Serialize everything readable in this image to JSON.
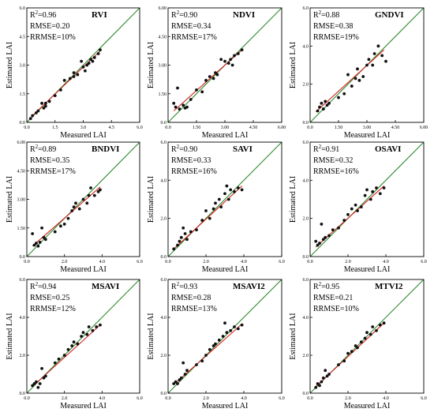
{
  "x_axis_label": "Measured LAI",
  "y_axis_label": "Estimated LAI",
  "colors": {
    "one_to_one_line": "#2e8b2e",
    "fit_line": "#d62020",
    "points": "#111111",
    "frame": "#000000"
  },
  "chart_data": [
    {
      "type": "scatter",
      "title": "RVI",
      "stats": {
        "r2_prefix": "R",
        "r2_sup": "2",
        "r2_value": "=0.96",
        "rmse": "RMSE=0.20",
        "rrmse": "RRMSE=10%"
      },
      "xlim": [
        0,
        6
      ],
      "ylim": [
        0,
        6
      ],
      "x_ticks": [
        0,
        1.5,
        3,
        4.5,
        6
      ],
      "x_tick_labels": [
        "0.0",
        "1.5",
        "3.0",
        "4.5",
        "6.0"
      ],
      "y_ticks": [
        0,
        1.5,
        3,
        4.5,
        6
      ],
      "y_tick_labels": [
        "0.0",
        "1.5",
        "3.0",
        "4.5",
        "6.0"
      ],
      "fit_line": [
        [
          0.3,
          0.35
        ],
        [
          3.9,
          3.75
        ]
      ],
      "points": [
        [
          0.2,
          0.2
        ],
        [
          0.3,
          0.35
        ],
        [
          0.5,
          0.5
        ],
        [
          0.6,
          0.6
        ],
        [
          0.8,
          1.0
        ],
        [
          0.9,
          0.75
        ],
        [
          1.0,
          0.85
        ],
        [
          1.0,
          1.0
        ],
        [
          1.2,
          1.1
        ],
        [
          1.5,
          1.4
        ],
        [
          1.8,
          1.7
        ],
        [
          2.0,
          2.2
        ],
        [
          2.3,
          2.3
        ],
        [
          2.5,
          2.4
        ],
        [
          2.5,
          2.6
        ],
        [
          2.7,
          2.5
        ],
        [
          2.9,
          3.2
        ],
        [
          3.0,
          2.9
        ],
        [
          3.1,
          2.7
        ],
        [
          3.2,
          3.0
        ],
        [
          3.3,
          3.1
        ],
        [
          3.4,
          3.3
        ],
        [
          3.5,
          3.2
        ],
        [
          3.6,
          3.4
        ],
        [
          3.8,
          3.6
        ],
        [
          3.9,
          3.8
        ]
      ]
    },
    {
      "type": "scatter",
      "title": "NDVI",
      "stats": {
        "r2_prefix": "R",
        "r2_sup": "2",
        "r2_value": "=0.90",
        "rmse": "RMSE=0.34",
        "rrmse": "RRMSE=17%"
      },
      "xlim": [
        0,
        6
      ],
      "ylim": [
        0,
        6
      ],
      "x_ticks": [
        0,
        1.5,
        3,
        4.5,
        6
      ],
      "x_tick_labels": [
        "0.0",
        "1.50",
        "3.00",
        "4.50",
        "6.00"
      ],
      "y_ticks": [
        0,
        1.5,
        3,
        4.5,
        6
      ],
      "y_tick_labels": [
        "0.0",
        "1.50",
        "3.00",
        "4.50",
        "6.00"
      ],
      "fit_line": [
        [
          0.3,
          0.6
        ],
        [
          3.9,
          3.8
        ]
      ],
      "points": [
        [
          0.3,
          1.0
        ],
        [
          0.4,
          0.8
        ],
        [
          0.5,
          1.8
        ],
        [
          0.6,
          0.7
        ],
        [
          0.8,
          0.9
        ],
        [
          0.9,
          0.75
        ],
        [
          1.0,
          0.8
        ],
        [
          1.2,
          1.2
        ],
        [
          1.5,
          1.7
        ],
        [
          1.8,
          1.6
        ],
        [
          2.0,
          2.2
        ],
        [
          2.2,
          2.4
        ],
        [
          2.4,
          2.3
        ],
        [
          2.5,
          2.6
        ],
        [
          2.6,
          2.5
        ],
        [
          2.8,
          3.3
        ],
        [
          3.0,
          3.2
        ],
        [
          3.2,
          3.1
        ],
        [
          3.3,
          3.3
        ],
        [
          3.4,
          3.0
        ],
        [
          3.5,
          3.5
        ],
        [
          3.7,
          3.6
        ],
        [
          3.9,
          3.8
        ]
      ]
    },
    {
      "type": "scatter",
      "title": "GNDVI",
      "stats": {
        "r2_prefix": "R",
        "r2_sup": "2",
        "r2_value": "=0.88",
        "rmse": "RMSE=0.38",
        "rrmse": "RRMSE=19%"
      },
      "xlim": [
        0,
        6
      ],
      "ylim": [
        0,
        6
      ],
      "x_ticks": [
        0,
        1.5,
        3,
        4.5,
        6
      ],
      "x_tick_labels": [
        "0.0",
        "1.50",
        "3.00",
        "4.50",
        "6.00"
      ],
      "y_ticks": [
        0,
        2,
        4,
        6
      ],
      "y_tick_labels": [
        "0.0",
        "2.0",
        "4.0",
        "6.0"
      ],
      "fit_line": [
        [
          0.3,
          0.55
        ],
        [
          3.9,
          3.8
        ]
      ],
      "points": [
        [
          0.4,
          0.6
        ],
        [
          0.5,
          0.8
        ],
        [
          0.6,
          1.0
        ],
        [
          0.7,
          0.7
        ],
        [
          0.8,
          1.1
        ],
        [
          0.9,
          0.9
        ],
        [
          1.0,
          1.0
        ],
        [
          1.5,
          1.3
        ],
        [
          1.8,
          1.5
        ],
        [
          2.0,
          2.5
        ],
        [
          2.2,
          1.9
        ],
        [
          2.4,
          2.3
        ],
        [
          2.5,
          2.8
        ],
        [
          2.6,
          2.2
        ],
        [
          2.8,
          2.4
        ],
        [
          3.0,
          3.0
        ],
        [
          3.1,
          3.3
        ],
        [
          3.3,
          3.0
        ],
        [
          3.4,
          3.6
        ],
        [
          3.6,
          4.0
        ],
        [
          3.8,
          3.5
        ],
        [
          4.0,
          3.2
        ]
      ]
    },
    {
      "type": "scatter",
      "title": "BNDVI",
      "stats": {
        "r2_prefix": "R",
        "r2_sup": "2",
        "r2_value": "=0.89",
        "rmse": "RMSE=0.35",
        "rrmse": "RRMSE=17%"
      },
      "xlim": [
        0,
        6
      ],
      "ylim": [
        0,
        6
      ],
      "x_ticks": [
        0,
        2,
        4,
        6
      ],
      "x_tick_labels": [
        "0.0",
        "2.0",
        "4.0",
        "6.0"
      ],
      "y_ticks": [
        0,
        1.5,
        3,
        4.5,
        6
      ],
      "y_tick_labels": [
        "0.0",
        "1.50",
        "3.00",
        "4.50",
        "6.00"
      ],
      "fit_line": [
        [
          0.3,
          0.55
        ],
        [
          3.9,
          3.65
        ]
      ],
      "points": [
        [
          0.3,
          1.2
        ],
        [
          0.4,
          0.6
        ],
        [
          0.5,
          0.7
        ],
        [
          0.6,
          0.55
        ],
        [
          0.7,
          0.75
        ],
        [
          0.8,
          1.5
        ],
        [
          0.9,
          1.0
        ],
        [
          1.0,
          0.9
        ],
        [
          1.5,
          1.3
        ],
        [
          1.8,
          1.6
        ],
        [
          2.0,
          1.7
        ],
        [
          2.2,
          2.0
        ],
        [
          2.4,
          2.4
        ],
        [
          2.5,
          2.6
        ],
        [
          2.6,
          2.8
        ],
        [
          2.8,
          2.5
        ],
        [
          3.0,
          3.0
        ],
        [
          3.2,
          2.8
        ],
        [
          3.3,
          3.2
        ],
        [
          3.4,
          3.6
        ],
        [
          3.6,
          3.2
        ],
        [
          3.8,
          3.4
        ],
        [
          3.9,
          3.5
        ]
      ]
    },
    {
      "type": "scatter",
      "title": "SAVI",
      "stats": {
        "r2_prefix": "R",
        "r2_sup": "2",
        "r2_value": "=0.90",
        "rmse": "RMSE=0.33",
        "rrmse": "RRMSE=16%"
      },
      "xlim": [
        0,
        6
      ],
      "ylim": [
        0,
        6
      ],
      "x_ticks": [
        0,
        2,
        4,
        6
      ],
      "x_tick_labels": [
        "0.0",
        "2.0",
        "4.0",
        "6.0"
      ],
      "y_ticks": [
        0,
        2,
        4,
        6
      ],
      "y_tick_labels": [
        "0.0",
        "2.0",
        "4.0",
        "6.0"
      ],
      "fit_line": [
        [
          0.3,
          0.4
        ],
        [
          3.9,
          3.7
        ]
      ],
      "points": [
        [
          0.3,
          0.4
        ],
        [
          0.5,
          0.6
        ],
        [
          0.6,
          0.8
        ],
        [
          0.7,
          1.0
        ],
        [
          0.8,
          1.5
        ],
        [
          0.9,
          1.2
        ],
        [
          1.0,
          0.9
        ],
        [
          1.2,
          1.3
        ],
        [
          1.5,
          1.4
        ],
        [
          1.8,
          1.9
        ],
        [
          2.0,
          2.4
        ],
        [
          2.2,
          2.0
        ],
        [
          2.4,
          2.5
        ],
        [
          2.5,
          2.8
        ],
        [
          2.7,
          3.0
        ],
        [
          2.8,
          2.6
        ],
        [
          3.0,
          3.3
        ],
        [
          3.1,
          3.7
        ],
        [
          3.2,
          3.0
        ],
        [
          3.3,
          3.5
        ],
        [
          3.5,
          3.4
        ],
        [
          3.7,
          3.6
        ],
        [
          3.9,
          3.5
        ]
      ]
    },
    {
      "type": "scatter",
      "title": "OSAVI",
      "stats": {
        "r2_prefix": "R",
        "r2_sup": "2",
        "r2_value": "=0.91",
        "rmse": "RMSE=0.32",
        "rrmse": "RRMSE=16%"
      },
      "xlim": [
        0,
        6
      ],
      "ylim": [
        0,
        6
      ],
      "x_ticks": [
        0,
        2,
        4,
        6
      ],
      "x_tick_labels": [
        "0.0",
        "2.0",
        "4.0",
        "6.0"
      ],
      "y_ticks": [
        0,
        2,
        4,
        6
      ],
      "y_tick_labels": [
        "0.0",
        "2.0",
        "4.0",
        "6.0"
      ],
      "fit_line": [
        [
          0.3,
          0.5
        ],
        [
          3.9,
          3.7
        ]
      ],
      "points": [
        [
          0.3,
          0.8
        ],
        [
          0.4,
          0.6
        ],
        [
          0.5,
          0.7
        ],
        [
          0.6,
          1.7
        ],
        [
          0.7,
          0.9
        ],
        [
          0.8,
          1.0
        ],
        [
          1.0,
          1.1
        ],
        [
          1.2,
          1.4
        ],
        [
          1.5,
          1.5
        ],
        [
          1.8,
          1.9
        ],
        [
          2.0,
          2.2
        ],
        [
          2.2,
          2.5
        ],
        [
          2.4,
          2.7
        ],
        [
          2.5,
          2.4
        ],
        [
          2.7,
          2.6
        ],
        [
          2.9,
          3.2
        ],
        [
          3.0,
          3.5
        ],
        [
          3.2,
          3.0
        ],
        [
          3.3,
          3.4
        ],
        [
          3.5,
          3.6
        ],
        [
          3.7,
          3.3
        ],
        [
          3.9,
          3.6
        ]
      ]
    },
    {
      "type": "scatter",
      "title": "MSAVI",
      "stats": {
        "r2_prefix": "R",
        "r2_sup": "2",
        "r2_value": "=0.94",
        "rmse": "RMSE=0.25",
        "rrmse": "RRMSE=12%"
      },
      "xlim": [
        0,
        6
      ],
      "ylim": [
        0,
        6
      ],
      "x_ticks": [
        0,
        2,
        4,
        6
      ],
      "x_tick_labels": [
        "0.0",
        "2.0",
        "4.0",
        "6.0"
      ],
      "y_ticks": [
        0,
        2,
        4,
        6
      ],
      "y_tick_labels": [
        "0.0",
        "2.0",
        "4.0",
        "6.0"
      ],
      "fit_line": [
        [
          0.3,
          0.35
        ],
        [
          3.9,
          3.6
        ]
      ],
      "points": [
        [
          0.3,
          0.4
        ],
        [
          0.4,
          0.5
        ],
        [
          0.5,
          0.6
        ],
        [
          0.6,
          0.3
        ],
        [
          0.7,
          0.5
        ],
        [
          0.8,
          1.3
        ],
        [
          0.9,
          0.8
        ],
        [
          1.0,
          0.9
        ],
        [
          1.5,
          1.6
        ],
        [
          1.7,
          1.8
        ],
        [
          2.0,
          2.0
        ],
        [
          2.2,
          2.3
        ],
        [
          2.4,
          2.5
        ],
        [
          2.5,
          2.7
        ],
        [
          2.7,
          2.6
        ],
        [
          2.9,
          3.0
        ],
        [
          3.0,
          3.2
        ],
        [
          3.2,
          3.1
        ],
        [
          3.3,
          3.5
        ],
        [
          3.5,
          3.3
        ],
        [
          3.7,
          3.5
        ],
        [
          3.9,
          3.6
        ]
      ]
    },
    {
      "type": "scatter",
      "title": "MSAVI2",
      "stats": {
        "r2_prefix": "R",
        "r2_sup": "2",
        "r2_value": "=0.93",
        "rmse": "RMSE=0.28",
        "rrmse": "RRMSE=13%"
      },
      "xlim": [
        0,
        6
      ],
      "ylim": [
        0,
        6
      ],
      "x_ticks": [
        0,
        2,
        4,
        6
      ],
      "x_tick_labels": [
        "0.0",
        "2.0",
        "4.0",
        "6.0"
      ],
      "y_ticks": [
        0,
        2,
        4,
        6
      ],
      "y_tick_labels": [
        "0.0",
        "2.0",
        "4.0",
        "6.0"
      ],
      "fit_line": [
        [
          0.3,
          0.45
        ],
        [
          3.9,
          3.65
        ]
      ],
      "points": [
        [
          0.3,
          0.5
        ],
        [
          0.4,
          0.6
        ],
        [
          0.5,
          0.5
        ],
        [
          0.6,
          0.7
        ],
        [
          0.7,
          0.8
        ],
        [
          0.8,
          1.6
        ],
        [
          0.9,
          1.0
        ],
        [
          1.0,
          1.2
        ],
        [
          1.5,
          1.5
        ],
        [
          1.8,
          1.7
        ],
        [
          2.0,
          2.0
        ],
        [
          2.2,
          2.3
        ],
        [
          2.4,
          2.5
        ],
        [
          2.5,
          2.6
        ],
        [
          2.7,
          2.8
        ],
        [
          2.9,
          3.0
        ],
        [
          3.0,
          3.7
        ],
        [
          3.1,
          3.2
        ],
        [
          3.3,
          3.3
        ],
        [
          3.5,
          3.5
        ],
        [
          3.7,
          3.4
        ],
        [
          3.9,
          3.6
        ]
      ]
    },
    {
      "type": "scatter",
      "title": "MTVI2",
      "stats": {
        "r2_prefix": "R",
        "r2_sup": "2",
        "r2_value": "=0.95",
        "rmse": "RMSE=0.21",
        "rrmse": "RRMSE=10%"
      },
      "xlim": [
        0,
        6
      ],
      "ylim": [
        0,
        6
      ],
      "x_ticks": [
        0,
        2,
        4,
        6
      ],
      "x_tick_labels": [
        "0.0",
        "2.0",
        "4.0",
        "6.0"
      ],
      "y_ticks": [
        0,
        2,
        4,
        6
      ],
      "y_tick_labels": [
        "0.0",
        "2.0",
        "4.0",
        "6.0"
      ],
      "fit_line": [
        [
          0.3,
          0.35
        ],
        [
          3.9,
          3.7
        ]
      ],
      "points": [
        [
          0.3,
          0.3
        ],
        [
          0.4,
          0.5
        ],
        [
          0.5,
          0.4
        ],
        [
          0.6,
          0.6
        ],
        [
          0.7,
          0.8
        ],
        [
          0.8,
          1.2
        ],
        [
          0.9,
          0.9
        ],
        [
          1.0,
          1.0
        ],
        [
          1.5,
          1.5
        ],
        [
          1.8,
          1.7
        ],
        [
          2.0,
          2.1
        ],
        [
          2.2,
          2.2
        ],
        [
          2.4,
          2.5
        ],
        [
          2.5,
          2.4
        ],
        [
          2.7,
          2.7
        ],
        [
          2.9,
          2.9
        ],
        [
          3.0,
          3.2
        ],
        [
          3.2,
          3.1
        ],
        [
          3.3,
          3.5
        ],
        [
          3.5,
          3.3
        ],
        [
          3.7,
          3.6
        ],
        [
          3.9,
          3.7
        ]
      ]
    }
  ]
}
